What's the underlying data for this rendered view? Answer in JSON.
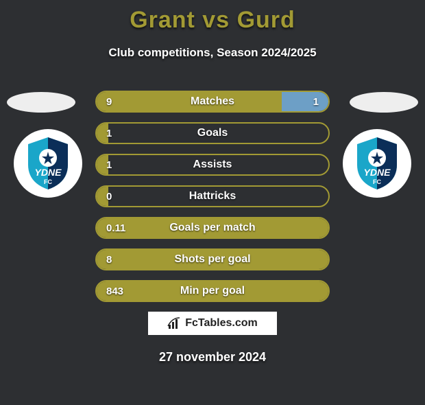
{
  "title": "Grant vs Gurd",
  "subtitle": "Club competitions, Season 2024/2025",
  "date": "27 november 2024",
  "brand": "FcTables.com",
  "colors": {
    "background": "#2d2f32",
    "accent": "#a29a34",
    "right_fill": "#6d9fc6",
    "badge_shield_top": "#1aa6c9",
    "badge_shield_bottom": "#0b2e58",
    "ellipse": "#eeeeee"
  },
  "fonts": {
    "title_size": 34,
    "subtitle_size": 17,
    "bar_label_size": 16,
    "value_size": 15,
    "date_size": 18
  },
  "players": {
    "left": {
      "club_code": "YDNE",
      "club_sub": "FC"
    },
    "right": {
      "club_code": "YDNE",
      "club_sub": "FC"
    }
  },
  "bars": [
    {
      "label": "Matches",
      "left_value": "9",
      "right_value": "1",
      "left_pct": 80,
      "right_pct": 20
    },
    {
      "label": "Goals",
      "left_value": "1",
      "right_value": "",
      "left_pct": 5,
      "right_pct": 0
    },
    {
      "label": "Assists",
      "left_value": "1",
      "right_value": "",
      "left_pct": 5,
      "right_pct": 0
    },
    {
      "label": "Hattricks",
      "left_value": "0",
      "right_value": "",
      "left_pct": 5,
      "right_pct": 0
    },
    {
      "label": "Goals per match",
      "left_value": "0.11",
      "right_value": "",
      "left_pct": 100,
      "right_pct": 0
    },
    {
      "label": "Shots per goal",
      "left_value": "8",
      "right_value": "",
      "left_pct": 100,
      "right_pct": 0
    },
    {
      "label": "Min per goal",
      "left_value": "843",
      "right_value": "",
      "left_pct": 100,
      "right_pct": 0
    }
  ]
}
